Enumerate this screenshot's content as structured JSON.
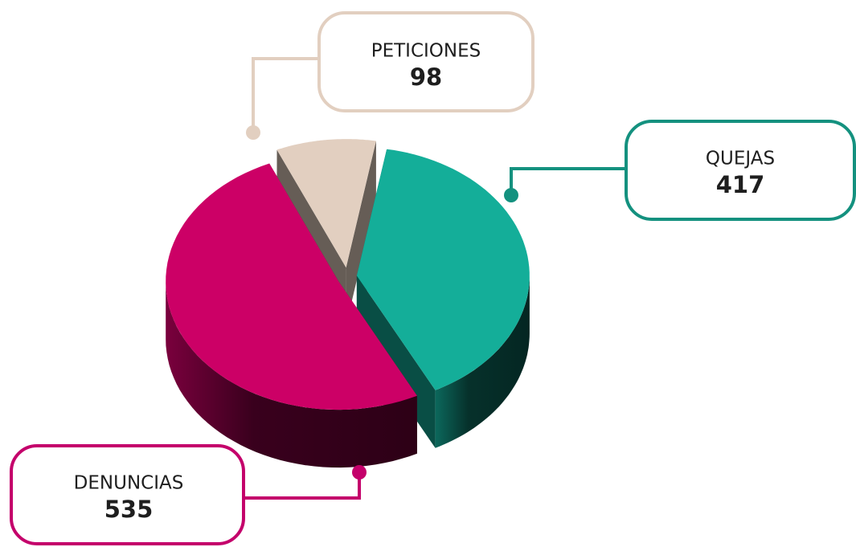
{
  "chart_data": {
    "type": "pie3d",
    "categories": [
      "QUEJAS",
      "DENUNCIAS",
      "PETICIONES"
    ],
    "values": [
      417,
      535,
      98
    ],
    "colors": [
      "#14ae99",
      "#cc0066",
      "#e2cfc0"
    ]
  }
}
